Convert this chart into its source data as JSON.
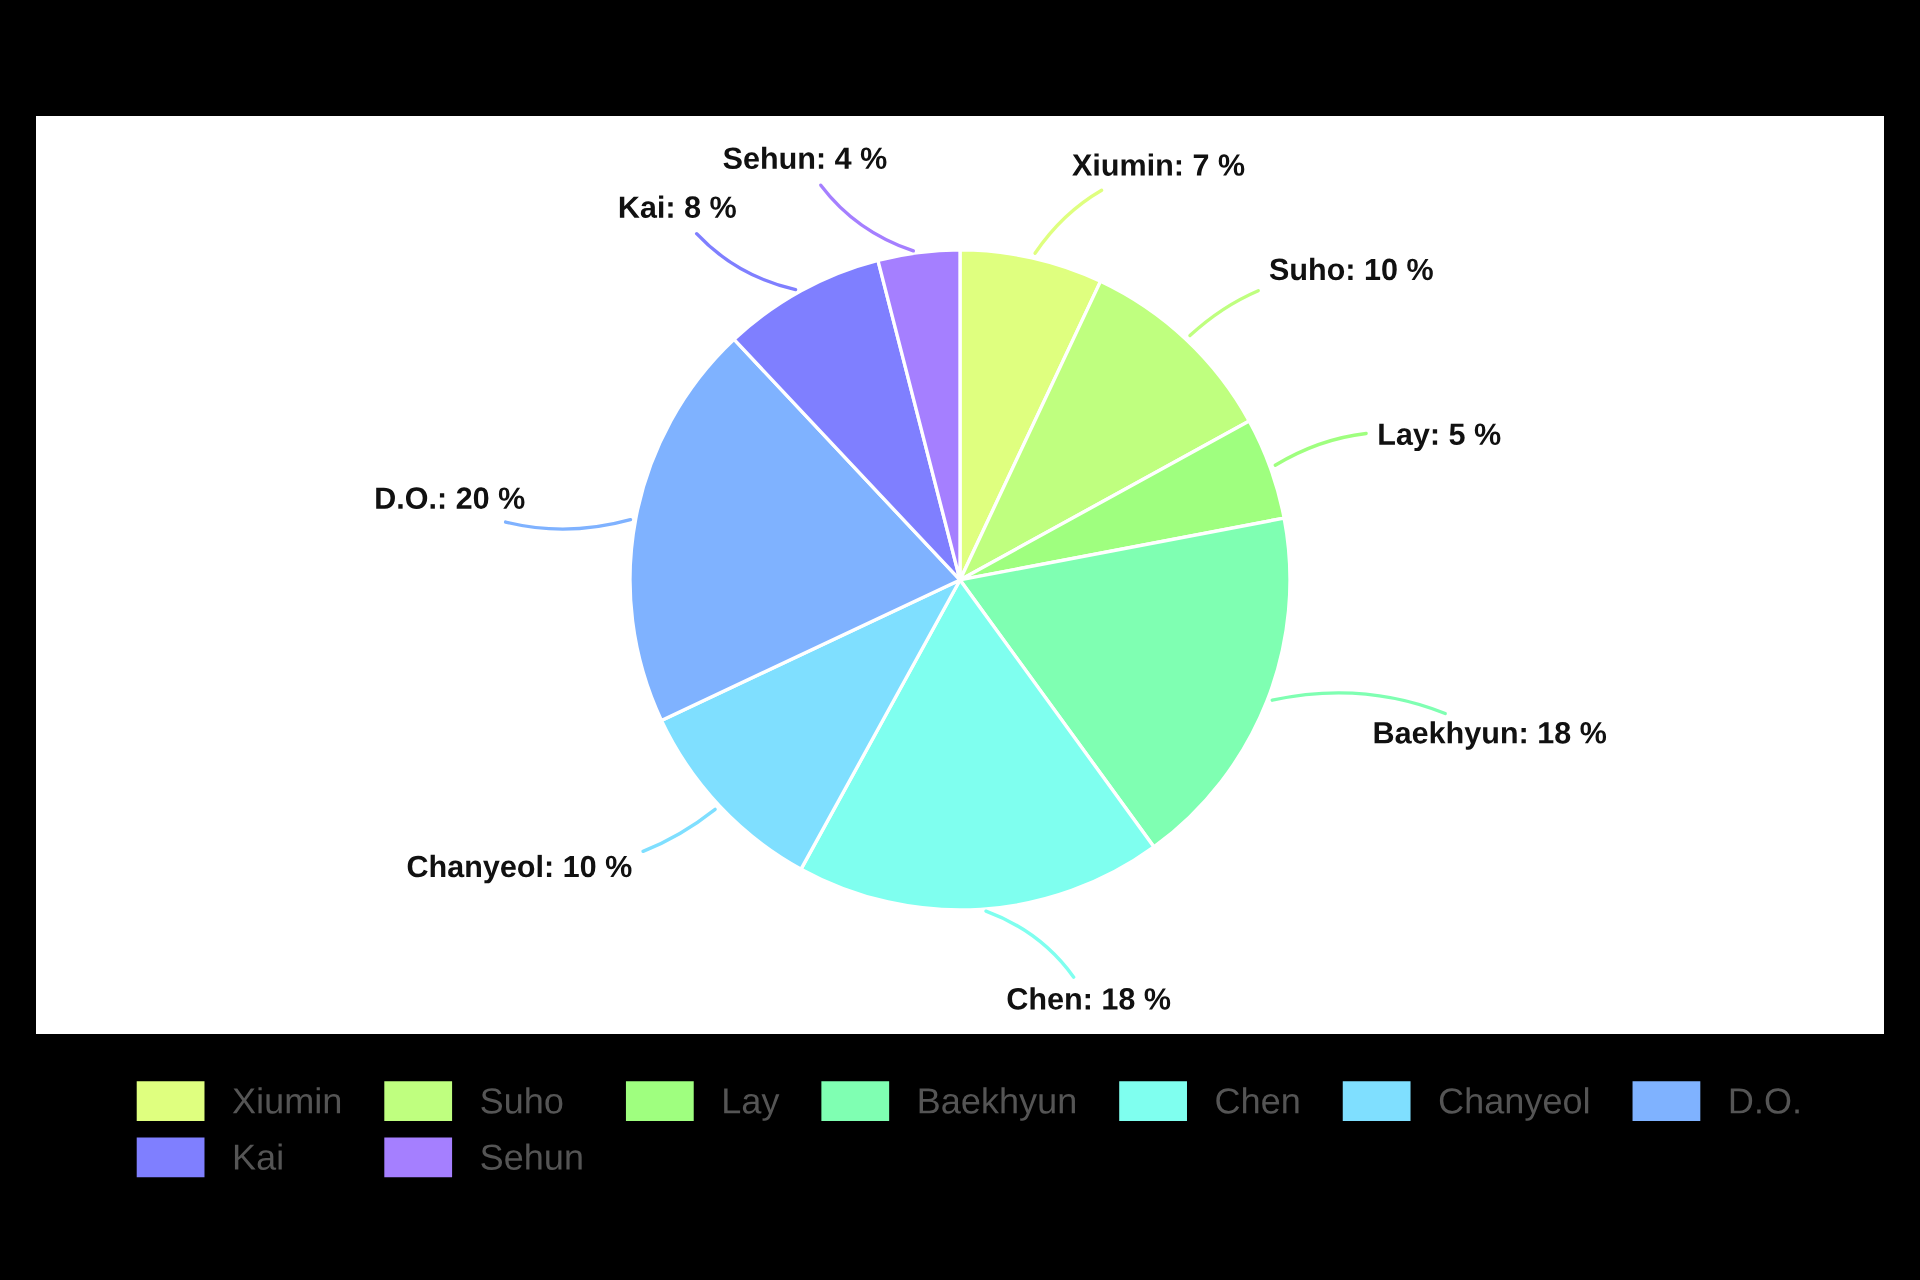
{
  "chart_data": {
    "type": "pie",
    "categories": [
      "Xiumin",
      "Suho",
      "Lay",
      "Baekhyun",
      "Chen",
      "Chanyeol",
      "D.O.",
      "Kai",
      "Sehun"
    ],
    "values": [
      7,
      10,
      5,
      18,
      18,
      10,
      20,
      8,
      4
    ],
    "colors": [
      "#dfff7f",
      "#bfff7f",
      "#9fff7f",
      "#7fffb2",
      "#7fffef",
      "#7fdfff",
      "#7fb2ff",
      "#7f7fff",
      "#a57fff"
    ],
    "value_labels": [
      "Xiumin: 7 %",
      "Suho: 10 %",
      "Lay: 5 %",
      "Baekhyun: 18 %",
      "Chen: 18 %",
      "Chanyeol: 10 %",
      "D.O.: 20 %",
      "Kai: 8 %",
      "Sehun: 4 %"
    ],
    "legend": "bottom"
  }
}
